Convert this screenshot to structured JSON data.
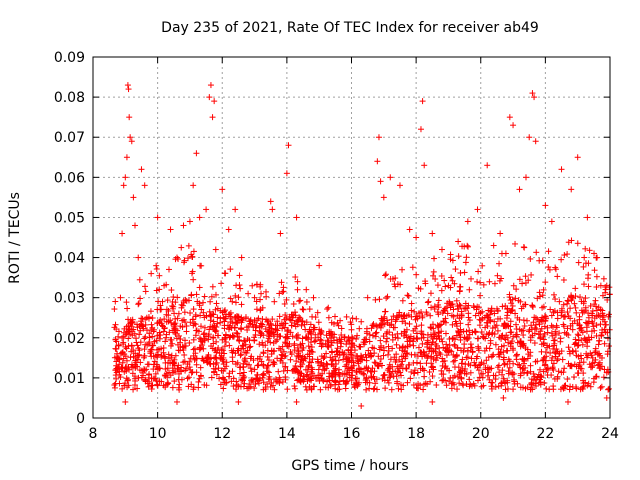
{
  "chart_data": {
    "type": "scatter",
    "title": "Day 235 of 2021, Rate Of TEC Index for receiver ab49",
    "xlabel": "GPS time / hours",
    "ylabel": "ROTI / TECUs",
    "xlim": [
      8,
      24
    ],
    "ylim": [
      0,
      0.09
    ],
    "xticks": [
      "8",
      "10",
      "12",
      "14",
      "16",
      "18",
      "20",
      "22",
      "24"
    ],
    "yticks": [
      "0",
      "0.01",
      "0.02",
      "0.03",
      "0.04",
      "0.05",
      "0.06",
      "0.07",
      "0.08",
      "0.09"
    ],
    "grid": true,
    "marker": "+",
    "color": "#ff0000",
    "series": [
      {
        "points": [
          [
            8.7,
            0.012
          ],
          [
            8.8,
            0.018
          ],
          [
            8.85,
            0.03
          ],
          [
            8.9,
            0.046
          ],
          [
            8.95,
            0.058
          ],
          [
            9.0,
            0.06
          ],
          [
            9.05,
            0.065
          ],
          [
            9.08,
            0.083
          ],
          [
            9.1,
            0.082
          ],
          [
            9.12,
            0.075
          ],
          [
            9.15,
            0.07
          ],
          [
            9.2,
            0.069
          ],
          [
            9.25,
            0.055
          ],
          [
            9.3,
            0.048
          ],
          [
            9.4,
            0.04
          ],
          [
            9.5,
            0.062
          ],
          [
            9.6,
            0.058
          ],
          [
            9.8,
            0.036
          ],
          [
            10.0,
            0.05
          ],
          [
            10.2,
            0.033
          ],
          [
            10.4,
            0.047
          ],
          [
            10.6,
            0.04
          ],
          [
            10.8,
            0.048
          ],
          [
            11.0,
            0.049
          ],
          [
            11.1,
            0.058
          ],
          [
            11.2,
            0.066
          ],
          [
            11.3,
            0.05
          ],
          [
            11.5,
            0.052
          ],
          [
            11.6,
            0.08
          ],
          [
            11.65,
            0.083
          ],
          [
            11.7,
            0.075
          ],
          [
            11.75,
            0.079
          ],
          [
            11.8,
            0.042
          ],
          [
            12.0,
            0.057
          ],
          [
            12.2,
            0.047
          ],
          [
            12.4,
            0.052
          ],
          [
            12.6,
            0.04
          ],
          [
            12.8,
            0.031
          ],
          [
            13.0,
            0.03
          ],
          [
            13.2,
            0.031
          ],
          [
            13.5,
            0.054
          ],
          [
            13.55,
            0.052
          ],
          [
            13.8,
            0.046
          ],
          [
            14.0,
            0.061
          ],
          [
            14.05,
            0.068
          ],
          [
            14.3,
            0.05
          ],
          [
            14.6,
            0.032
          ],
          [
            15.0,
            0.038
          ],
          [
            15.3,
            0.025
          ],
          [
            15.6,
            0.023
          ],
          [
            16.0,
            0.022
          ],
          [
            16.3,
            0.024
          ],
          [
            16.5,
            0.03
          ],
          [
            16.8,
            0.064
          ],
          [
            16.85,
            0.07
          ],
          [
            16.9,
            0.059
          ],
          [
            17.0,
            0.055
          ],
          [
            17.2,
            0.06
          ],
          [
            17.5,
            0.058
          ],
          [
            17.8,
            0.047
          ],
          [
            18.0,
            0.045
          ],
          [
            18.15,
            0.072
          ],
          [
            18.2,
            0.079
          ],
          [
            18.25,
            0.063
          ],
          [
            18.5,
            0.046
          ],
          [
            18.8,
            0.042
          ],
          [
            19.0,
            0.033
          ],
          [
            19.3,
            0.044
          ],
          [
            19.6,
            0.049
          ],
          [
            19.9,
            0.052
          ],
          [
            20.2,
            0.063
          ],
          [
            20.4,
            0.043
          ],
          [
            20.6,
            0.046
          ],
          [
            20.9,
            0.075
          ],
          [
            21.0,
            0.073
          ],
          [
            21.2,
            0.057
          ],
          [
            21.4,
            0.06
          ],
          [
            21.5,
            0.07
          ],
          [
            21.6,
            0.081
          ],
          [
            21.65,
            0.08
          ],
          [
            21.7,
            0.069
          ],
          [
            22.0,
            0.053
          ],
          [
            22.2,
            0.049
          ],
          [
            22.5,
            0.062
          ],
          [
            22.8,
            0.057
          ],
          [
            23.0,
            0.065
          ],
          [
            23.3,
            0.05
          ],
          [
            23.6,
            0.04
          ],
          [
            23.9,
            0.033
          ],
          [
            9.0,
            0.004
          ],
          [
            10.6,
            0.004
          ],
          [
            12.5,
            0.004
          ],
          [
            14.3,
            0.004
          ],
          [
            16.3,
            0.003
          ],
          [
            18.5,
            0.004
          ],
          [
            20.7,
            0.005
          ],
          [
            22.7,
            0.004
          ],
          [
            23.9,
            0.005
          ]
        ],
        "baseline": [
          [
            8.7,
            0.014
          ],
          [
            9.2,
            0.016
          ],
          [
            9.8,
            0.018
          ],
          [
            10.5,
            0.019
          ],
          [
            11.0,
            0.022
          ],
          [
            11.5,
            0.018
          ],
          [
            12.0,
            0.019
          ],
          [
            12.5,
            0.017
          ],
          [
            13.0,
            0.016
          ],
          [
            13.5,
            0.016
          ],
          [
            14.0,
            0.018
          ],
          [
            14.5,
            0.016
          ],
          [
            15.0,
            0.014
          ],
          [
            15.5,
            0.013
          ],
          [
            16.0,
            0.012
          ],
          [
            16.5,
            0.014
          ],
          [
            17.0,
            0.017
          ],
          [
            17.5,
            0.018
          ],
          [
            18.0,
            0.018
          ],
          [
            18.5,
            0.019
          ],
          [
            19.0,
            0.02
          ],
          [
            19.5,
            0.021
          ],
          [
            20.0,
            0.018
          ],
          [
            20.5,
            0.019
          ],
          [
            21.0,
            0.021
          ],
          [
            21.5,
            0.02
          ],
          [
            22.0,
            0.02
          ],
          [
            22.5,
            0.021
          ],
          [
            23.0,
            0.022
          ],
          [
            23.5,
            0.02
          ],
          [
            24.0,
            0.017
          ]
        ]
      }
    ]
  }
}
